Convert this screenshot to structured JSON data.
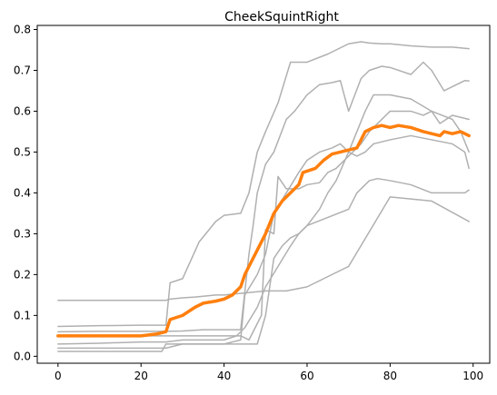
{
  "chart_data": {
    "type": "line",
    "title": "CheekSquintRight",
    "xlabel": "",
    "ylabel": "",
    "xlim": [
      -5,
      104
    ],
    "ylim": [
      -0.017,
      0.81
    ],
    "xticks": [
      0,
      20,
      40,
      60,
      80,
      100
    ],
    "yticks": [
      0.0,
      0.1,
      0.2,
      0.3,
      0.4,
      0.5,
      0.6,
      0.7,
      0.8
    ],
    "ytick_labels": [
      "0.0",
      "0.1",
      "0.2",
      "0.3",
      "0.4",
      "0.5",
      "0.6",
      "0.7",
      "0.8"
    ],
    "grid": false,
    "legend": "none",
    "colors": {
      "individual": "#b0b0b0",
      "mean": "#ff7f0e"
    },
    "series": [
      {
        "role": "individual",
        "x": [
          0,
          10,
          20,
          26,
          27,
          30,
          33,
          35,
          38,
          40,
          45,
          50,
          55,
          60,
          70,
          80,
          90,
          99
        ],
        "values": [
          0.137,
          0.137,
          0.137,
          0.137,
          0.14,
          0.143,
          0.145,
          0.147,
          0.15,
          0.15,
          0.155,
          0.16,
          0.16,
          0.17,
          0.22,
          0.39,
          0.38,
          0.33
        ]
      },
      {
        "role": "individual",
        "x": [
          0,
          10,
          20,
          26,
          27,
          30,
          34,
          38,
          40,
          44,
          46,
          48,
          50,
          53,
          56,
          60,
          65,
          70,
          73,
          75,
          78,
          80,
          85,
          90,
          95,
          99
        ],
        "values": [
          0.073,
          0.075,
          0.076,
          0.076,
          0.18,
          0.19,
          0.28,
          0.33,
          0.345,
          0.35,
          0.4,
          0.5,
          0.55,
          0.62,
          0.72,
          0.72,
          0.74,
          0.765,
          0.77,
          0.767,
          0.765,
          0.765,
          0.76,
          0.757,
          0.757,
          0.753
        ]
      },
      {
        "role": "individual",
        "x": [
          0,
          10,
          20,
          26,
          30,
          35,
          40,
          44,
          46,
          47,
          48,
          50,
          52,
          55,
          57,
          60,
          63,
          66,
          68,
          70,
          73,
          75,
          78,
          80,
          85,
          88,
          90,
          93,
          95,
          98,
          99
        ],
        "values": [
          0.06,
          0.061,
          0.061,
          0.061,
          0.062,
          0.065,
          0.065,
          0.065,
          0.25,
          0.32,
          0.4,
          0.47,
          0.5,
          0.58,
          0.6,
          0.64,
          0.665,
          0.67,
          0.675,
          0.6,
          0.68,
          0.7,
          0.71,
          0.707,
          0.69,
          0.72,
          0.7,
          0.65,
          0.66,
          0.675,
          0.674
        ]
      },
      {
        "role": "individual",
        "x": [
          0,
          10,
          20,
          26,
          30,
          35,
          40,
          44,
          46,
          49,
          50,
          52,
          53,
          55,
          58,
          60,
          63,
          65,
          67,
          70,
          73,
          75,
          80,
          85,
          88,
          90,
          92,
          95,
          99
        ],
        "values": [
          0.05,
          0.05,
          0.05,
          0.05,
          0.05,
          0.05,
          0.05,
          0.05,
          0.04,
          0.1,
          0.31,
          0.3,
          0.44,
          0.41,
          0.41,
          0.42,
          0.425,
          0.45,
          0.46,
          0.49,
          0.52,
          0.55,
          0.6,
          0.6,
          0.59,
          0.6,
          0.57,
          0.59,
          0.58
        ]
      },
      {
        "role": "individual",
        "x": [
          0,
          10,
          20,
          26,
          30,
          35,
          40,
          43,
          45,
          48,
          50,
          53,
          56,
          58,
          60,
          65,
          70,
          72,
          74,
          75,
          77,
          80,
          85,
          90,
          95,
          98,
          99
        ],
        "values": [
          0.03,
          0.032,
          0.035,
          0.035,
          0.04,
          0.04,
          0.04,
          0.05,
          0.07,
          0.12,
          0.17,
          0.22,
          0.27,
          0.3,
          0.32,
          0.34,
          0.36,
          0.4,
          0.42,
          0.43,
          0.435,
          0.43,
          0.42,
          0.4,
          0.4,
          0.4,
          0.407
        ]
      },
      {
        "role": "individual",
        "x": [
          0,
          10,
          20,
          26,
          30,
          35,
          40,
          45,
          48,
          50,
          52,
          54,
          56,
          58,
          60,
          63,
          65,
          67,
          70,
          72,
          74,
          76,
          78,
          80,
          85,
          90,
          95,
          97,
          99
        ],
        "values": [
          0.02,
          0.02,
          0.02,
          0.02,
          0.03,
          0.03,
          0.03,
          0.03,
          0.03,
          0.1,
          0.24,
          0.27,
          0.29,
          0.3,
          0.32,
          0.36,
          0.4,
          0.43,
          0.5,
          0.55,
          0.6,
          0.64,
          0.64,
          0.64,
          0.63,
          0.6,
          0.58,
          0.55,
          0.5
        ]
      },
      {
        "role": "individual",
        "x": [
          0,
          10,
          20,
          25,
          26,
          27,
          30,
          35,
          40,
          44,
          45,
          48,
          50,
          52,
          55,
          58,
          60,
          63,
          66,
          68,
          70,
          72,
          74,
          76,
          80,
          85,
          90,
          95,
          98,
          99
        ],
        "values": [
          0.012,
          0.012,
          0.012,
          0.012,
          0.03,
          0.03,
          0.03,
          0.03,
          0.03,
          0.04,
          0.15,
          0.2,
          0.25,
          0.35,
          0.4,
          0.45,
          0.48,
          0.5,
          0.51,
          0.52,
          0.5,
          0.49,
          0.5,
          0.52,
          0.53,
          0.54,
          0.53,
          0.52,
          0.5,
          0.46
        ]
      },
      {
        "role": "mean",
        "x": [
          0,
          5,
          10,
          15,
          20,
          24,
          26,
          27,
          30,
          33,
          35,
          38,
          40,
          42,
          44,
          45,
          46,
          48,
          50,
          52,
          54,
          56,
          58,
          59,
          62,
          64,
          66,
          68,
          70,
          72,
          74,
          76,
          78,
          80,
          82,
          85,
          88,
          90,
          92,
          93,
          95,
          97,
          98,
          99
        ],
        "values": [
          0.05,
          0.05,
          0.05,
          0.05,
          0.05,
          0.055,
          0.06,
          0.09,
          0.1,
          0.12,
          0.13,
          0.135,
          0.14,
          0.15,
          0.17,
          0.2,
          0.22,
          0.26,
          0.3,
          0.35,
          0.38,
          0.4,
          0.42,
          0.45,
          0.46,
          0.48,
          0.495,
          0.5,
          0.505,
          0.51,
          0.55,
          0.56,
          0.565,
          0.56,
          0.565,
          0.56,
          0.55,
          0.545,
          0.54,
          0.55,
          0.545,
          0.55,
          0.545,
          0.54
        ]
      }
    ]
  }
}
